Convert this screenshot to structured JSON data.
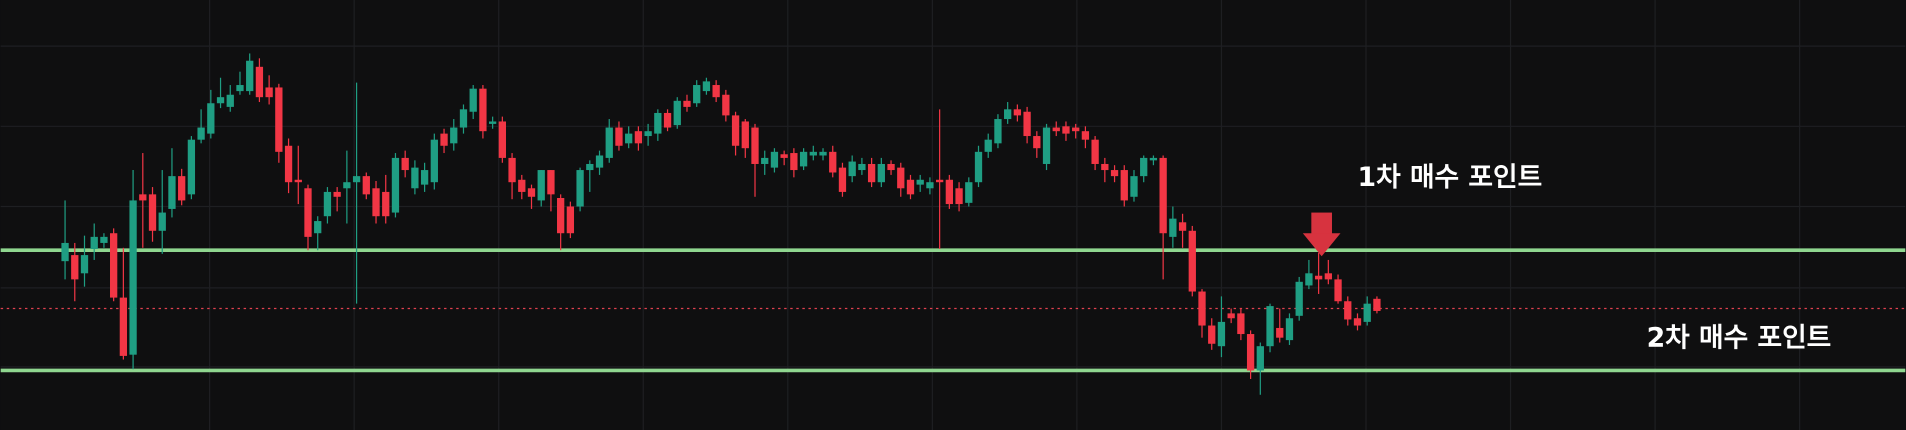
{
  "chart_data": {
    "type": "candlestick",
    "ylim": [
      0,
      354
    ],
    "up_color": "#1f9e83",
    "down_color": "#f23645",
    "candles": [
      [
        139,
        189,
        124,
        154
      ],
      [
        144,
        154,
        106,
        124
      ],
      [
        129,
        160,
        118,
        144
      ],
      [
        149,
        170,
        140,
        159
      ],
      [
        154,
        162,
        150,
        159
      ],
      [
        162,
        166,
        106,
        109
      ],
      [
        109,
        150,
        58,
        61
      ],
      [
        62,
        214,
        50,
        189
      ],
      [
        194,
        228,
        150,
        189
      ],
      [
        194,
        200,
        155,
        164
      ],
      [
        164,
        214,
        145,
        179
      ],
      [
        182,
        232,
        175,
        209
      ],
      [
        209,
        215,
        185,
        189
      ],
      [
        194,
        242,
        190,
        239
      ],
      [
        239,
        264,
        236,
        249
      ],
      [
        244,
        280,
        240,
        269
      ],
      [
        269,
        290,
        265,
        274
      ],
      [
        266,
        284,
        262,
        276
      ],
      [
        279,
        295,
        276,
        284
      ],
      [
        279,
        310,
        276,
        304
      ],
      [
        299,
        306,
        270,
        274
      ],
      [
        282,
        292,
        268,
        274
      ],
      [
        282,
        285,
        220,
        229
      ],
      [
        234,
        240,
        195,
        204
      ],
      [
        206,
        234,
        186,
        204
      ],
      [
        199,
        202,
        148,
        159
      ],
      [
        162,
        176,
        148,
        172
      ],
      [
        176,
        200,
        170,
        196
      ],
      [
        196,
        200,
        180,
        192
      ],
      [
        199,
        230,
        170,
        204
      ],
      [
        204,
        286,
        104,
        209
      ],
      [
        209,
        212,
        190,
        194
      ],
      [
        199,
        205,
        170,
        176
      ],
      [
        196,
        210,
        170,
        176
      ],
      [
        179,
        228,
        175,
        224
      ],
      [
        224,
        230,
        208,
        214
      ],
      [
        199,
        222,
        194,
        216
      ],
      [
        202,
        220,
        196,
        214
      ],
      [
        204,
        244,
        198,
        239
      ],
      [
        244,
        248,
        228,
        234
      ],
      [
        236,
        256,
        230,
        249
      ],
      [
        249,
        268,
        244,
        264
      ],
      [
        262,
        284,
        256,
        281
      ],
      [
        281,
        284,
        240,
        246
      ],
      [
        252,
        258,
        248,
        254
      ],
      [
        254,
        258,
        220,
        224
      ],
      [
        224,
        228,
        190,
        204
      ],
      [
        206,
        210,
        190,
        196
      ],
      [
        199,
        202,
        182,
        192
      ],
      [
        189,
        214,
        184,
        214
      ],
      [
        214,
        214,
        180,
        194
      ],
      [
        191,
        194,
        148,
        162
      ],
      [
        184,
        188,
        158,
        162
      ],
      [
        184,
        216,
        180,
        214
      ],
      [
        214,
        222,
        196,
        219
      ],
      [
        216,
        230,
        210,
        226
      ],
      [
        224,
        256,
        220,
        249
      ],
      [
        249,
        254,
        230,
        234
      ],
      [
        236,
        250,
        232,
        244
      ],
      [
        246,
        250,
        230,
        236
      ],
      [
        242,
        252,
        234,
        246
      ],
      [
        244,
        264,
        238,
        261
      ],
      [
        261,
        264,
        246,
        249
      ],
      [
        251,
        274,
        248,
        271
      ],
      [
        271,
        276,
        262,
        266
      ],
      [
        269,
        288,
        266,
        284
      ],
      [
        279,
        290,
        276,
        287
      ],
      [
        284,
        288,
        270,
        274
      ],
      [
        276,
        280,
        254,
        259
      ],
      [
        259,
        262,
        226,
        234
      ],
      [
        254,
        256,
        224,
        232
      ],
      [
        249,
        252,
        192,
        219
      ],
      [
        219,
        230,
        210,
        224
      ],
      [
        216,
        232,
        212,
        229
      ],
      [
        227,
        230,
        218,
        224
      ],
      [
        228,
        232,
        208,
        214
      ],
      [
        217,
        232,
        214,
        229
      ],
      [
        226,
        234,
        222,
        229
      ],
      [
        226,
        232,
        222,
        229
      ],
      [
        229,
        234,
        208,
        212
      ],
      [
        216,
        220,
        192,
        196
      ],
      [
        209,
        226,
        204,
        221
      ],
      [
        214,
        224,
        210,
        219
      ],
      [
        219,
        224,
        200,
        204
      ],
      [
        204,
        224,
        200,
        219
      ],
      [
        219,
        222,
        210,
        214
      ],
      [
        216,
        220,
        192,
        199
      ],
      [
        206,
        210,
        190,
        194
      ],
      [
        202,
        210,
        196,
        206
      ],
      [
        199,
        208,
        194,
        204
      ],
      [
        206,
        264,
        149,
        204
      ],
      [
        206,
        210,
        182,
        186
      ],
      [
        199,
        204,
        180,
        186
      ],
      [
        187,
        208,
        184,
        204
      ],
      [
        204,
        234,
        200,
        229
      ],
      [
        229,
        244,
        224,
        239
      ],
      [
        236,
        260,
        232,
        256
      ],
      [
        256,
        270,
        252,
        264
      ],
      [
        264,
        268,
        254,
        259
      ],
      [
        262,
        266,
        236,
        242
      ],
      [
        242,
        246,
        224,
        232
      ],
      [
        219,
        252,
        214,
        249
      ],
      [
        249,
        254,
        242,
        246
      ],
      [
        250,
        254,
        238,
        244
      ],
      [
        249,
        252,
        240,
        246
      ],
      [
        246,
        250,
        232,
        239
      ],
      [
        239,
        242,
        214,
        219
      ],
      [
        219,
        224,
        204,
        214
      ],
      [
        214,
        218,
        204,
        209
      ],
      [
        214,
        218,
        184,
        189
      ],
      [
        192,
        214,
        188,
        209
      ],
      [
        209,
        226,
        204,
        224
      ],
      [
        222,
        226,
        218,
        224
      ],
      [
        224,
        226,
        124,
        162
      ],
      [
        159,
        184,
        150,
        174
      ],
      [
        171,
        178,
        150,
        164
      ],
      [
        164,
        168,
        110,
        114
      ],
      [
        114,
        116,
        76,
        86
      ],
      [
        86,
        92,
        66,
        71
      ],
      [
        69,
        110,
        60,
        89
      ],
      [
        96,
        100,
        88,
        92
      ],
      [
        96,
        100,
        74,
        79
      ],
      [
        79,
        82,
        42,
        49
      ],
      [
        49,
        72,
        29,
        69
      ],
      [
        69,
        104,
        64,
        102
      ],
      [
        84,
        100,
        72,
        76
      ],
      [
        74,
        96,
        70,
        92
      ],
      [
        94,
        126,
        90,
        122
      ],
      [
        119,
        140,
        116,
        129
      ],
      [
        127,
        146,
        112,
        124
      ],
      [
        129,
        140,
        120,
        124
      ],
      [
        124,
        128,
        104,
        106
      ],
      [
        106,
        110,
        86,
        91
      ],
      [
        92,
        96,
        82,
        86
      ],
      [
        89,
        110,
        86,
        104
      ],
      [
        108,
        110,
        96,
        98
      ]
    ],
    "levels": [
      {
        "value": 148,
        "color": "#8fd68f",
        "style": "solid"
      },
      {
        "value": 100,
        "color": "#e0414f",
        "style": "dotted"
      },
      {
        "value": 49,
        "color": "#8fd68f",
        "style": "solid"
      }
    ],
    "annotations": [
      "1차 매수 포인트",
      "2차 매수 포인트"
    ]
  }
}
